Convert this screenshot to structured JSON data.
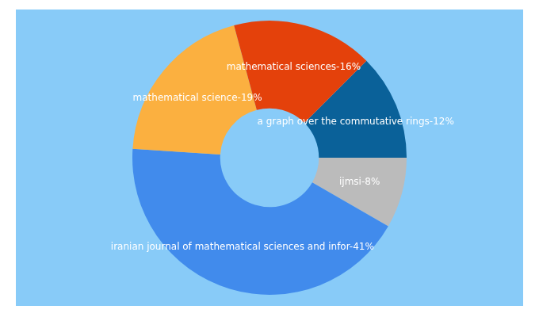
{
  "chart_data": {
    "type": "doughnut",
    "categories": [
      "a graph over the commutative rings-12%",
      "ijmsi-8%",
      "iranian journal of mathematical sciences and infor-41%",
      "mathematical science-19%",
      "mathematical sciences-16%"
    ],
    "values": [
      12,
      8,
      41,
      19,
      16
    ],
    "colors": [
      "#0a6199",
      "#bbbbbb",
      "#418bec",
      "#fbb040",
      "#e4410b"
    ]
  }
}
